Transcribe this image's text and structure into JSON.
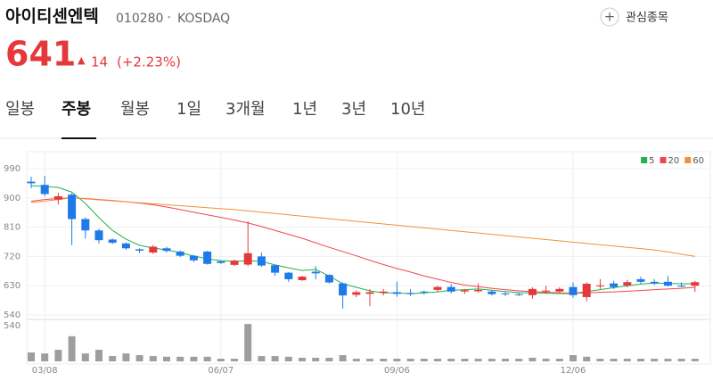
{
  "header": {
    "name": "아이티센엔텍",
    "code": "010280",
    "separator": "•",
    "market": "KOSDAQ",
    "watch_icon": "+",
    "watch_label": "관심종목"
  },
  "quote": {
    "price": "641",
    "arrow": "▲",
    "change": "14",
    "change_rate": "(+2.23%)"
  },
  "tabs": [
    "일봉",
    "주봉",
    "월봉",
    "1일",
    "3개월",
    "1년",
    "3년",
    "10년"
  ],
  "active_tab": 1,
  "chart_data": {
    "type": "candlestick",
    "categories": [
      null,
      "03/08",
      null,
      null,
      null,
      null,
      null,
      null,
      null,
      null,
      null,
      null,
      null,
      null,
      "06/07",
      null,
      null,
      null,
      null,
      null,
      null,
      null,
      null,
      null,
      null,
      null,
      null,
      "09/06",
      null,
      null,
      null,
      null,
      null,
      null,
      null,
      null,
      null,
      null,
      null,
      null,
      "12/06",
      null,
      null,
      null,
      null,
      null,
      null,
      null,
      null,
      null
    ],
    "open": [
      950,
      940,
      895,
      910,
      835,
      800,
      772,
      760,
      742,
      732,
      745,
      735,
      722,
      735,
      705,
      694,
      695,
      720,
      693,
      670,
      647,
      673,
      663,
      637,
      602,
      605,
      608,
      610,
      608,
      612,
      617,
      626,
      612,
      613,
      612,
      606,
      604,
      601,
      612,
      612,
      626,
      595,
      628,
      637,
      631,
      650,
      642,
      642,
      630,
      630
    ],
    "high": [
      965,
      968,
      915,
      915,
      840,
      805,
      775,
      763,
      745,
      755,
      750,
      738,
      725,
      737,
      707,
      710,
      828,
      732,
      695,
      672,
      660,
      690,
      665,
      640,
      615,
      620,
      620,
      642,
      620,
      615,
      630,
      635,
      620,
      637,
      615,
      612,
      608,
      625,
      630,
      625,
      640,
      640,
      650,
      645,
      648,
      658,
      650,
      660,
      640,
      645
    ],
    "low": [
      930,
      905,
      880,
      755,
      775,
      760,
      758,
      740,
      730,
      728,
      732,
      718,
      703,
      695,
      697,
      690,
      690,
      688,
      660,
      642,
      645,
      650,
      637,
      560,
      595,
      567,
      600,
      596,
      598,
      603,
      610,
      606,
      605,
      608,
      600,
      598,
      598,
      590,
      605,
      608,
      593,
      582,
      620,
      620,
      625,
      636,
      632,
      628,
      625,
      611
    ],
    "close": [
      945,
      912,
      905,
      835,
      800,
      770,
      762,
      745,
      738,
      750,
      737,
      722,
      708,
      697,
      700,
      707,
      730,
      692,
      670,
      650,
      658,
      668,
      640,
      600,
      610,
      610,
      612,
      605,
      605,
      610,
      626,
      612,
      616,
      617,
      604,
      604,
      602,
      620,
      615,
      620,
      601,
      636,
      631,
      626,
      641,
      642,
      637,
      630,
      627,
      641
    ],
    "up_color": "#e5383b",
    "down_color": "#1e7ae8",
    "ylim": [
      540,
      990
    ],
    "yticks": [
      540,
      630,
      720,
      810,
      900,
      990
    ],
    "grid": true,
    "series": [
      {
        "name": "5",
        "color": "#22b14c",
        "values": [
          938,
          935,
          932,
          918,
          883,
          839,
          800,
          773,
          754,
          746,
          740,
          732,
          721,
          713,
          707,
          705,
          707,
          705,
          694,
          685,
          677,
          680,
          660,
          636,
          625,
          614,
          608,
          608,
          605,
          608,
          611,
          616,
          618,
          620,
          616,
          612,
          609,
          608,
          607,
          606,
          606,
          612,
          618,
          624,
          630,
          635,
          638,
          637,
          636,
          636
        ]
      },
      {
        "name": "20",
        "color": "#f0474c",
        "values": [
          890,
          895,
          898,
          900,
          898,
          895,
          892,
          888,
          884,
          879,
          872,
          864,
          856,
          848,
          840,
          832,
          823,
          812,
          800,
          788,
          776,
          762,
          748,
          735,
          722,
          708,
          695,
          683,
          672,
          660,
          650,
          640,
          632,
          627,
          622,
          618,
          614,
          612,
          610,
          608,
          607,
          608,
          610,
          611,
          613,
          615,
          618,
          620,
          622,
          625
        ]
      },
      {
        "name": "60",
        "color": "#f0913c",
        "values": [
          886,
          890,
          895,
          900,
          897,
          894,
          891,
          888,
          885,
          882,
          879,
          876,
          873,
          870,
          867,
          864,
          860,
          856,
          852,
          848,
          844,
          840,
          836,
          832,
          828,
          824,
          820,
          816,
          812,
          808,
          804,
          800,
          796,
          792,
          788,
          784,
          780,
          776,
          772,
          768,
          764,
          760,
          756,
          752,
          748,
          744,
          740,
          734,
          727,
          720
        ]
      }
    ],
    "legend": "top-right",
    "volume": {
      "color": "#9e9e9e",
      "ylim": [
        0,
        580
      ],
      "yticks": [
        540
      ],
      "values": [
        135,
        120,
        175,
        380,
        120,
        175,
        80,
        120,
        95,
        80,
        70,
        70,
        70,
        70,
        40,
        40,
        565,
        80,
        80,
        70,
        55,
        55,
        55,
        95,
        40,
        40,
        40,
        40,
        40,
        40,
        40,
        40,
        40,
        40,
        40,
        40,
        40,
        55,
        40,
        40,
        95,
        70,
        40,
        40,
        40,
        40,
        40,
        40,
        40,
        40
      ]
    }
  }
}
